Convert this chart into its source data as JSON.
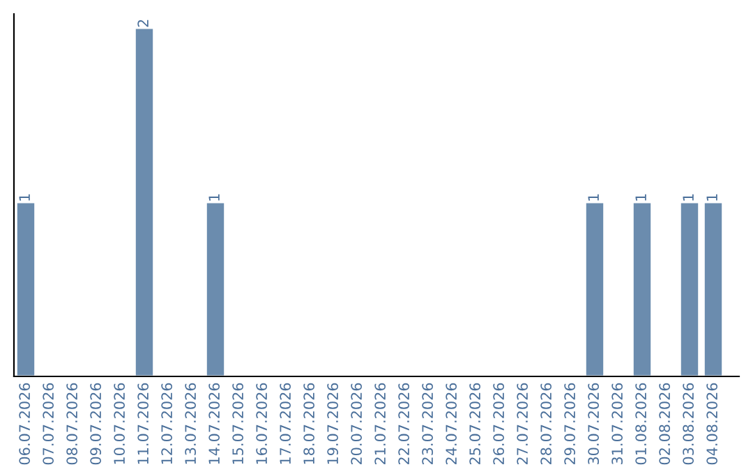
{
  "chart_data": {
    "type": "bar",
    "categories": [
      "06.07.2026",
      "07.07.2026",
      "08.07.2026",
      "09.07.2026",
      "10.07.2026",
      "11.07.2026",
      "12.07.2026",
      "13.07.2026",
      "14.07.2026",
      "15.07.2026",
      "16.07.2026",
      "17.07.2026",
      "18.07.2026",
      "19.07.2026",
      "20.07.2026",
      "21.07.2026",
      "22.07.2026",
      "23.07.2026",
      "24.07.2026",
      "25.07.2026",
      "26.07.2026",
      "27.07.2026",
      "28.07.2026",
      "29.07.2026",
      "30.07.2026",
      "31.07.2026",
      "01.08.2026",
      "02.08.2026",
      "03.08.2026",
      "04.08.2026"
    ],
    "values": [
      1,
      null,
      null,
      null,
      null,
      2,
      null,
      null,
      1,
      null,
      null,
      null,
      null,
      null,
      null,
      null,
      null,
      null,
      null,
      null,
      null,
      null,
      null,
      null,
      1,
      null,
      1,
      null,
      1,
      1
    ],
    "value_labels": [
      "1",
      null,
      null,
      null,
      null,
      "2",
      null,
      null,
      "1",
      null,
      null,
      null,
      null,
      null,
      null,
      null,
      null,
      null,
      null,
      null,
      null,
      null,
      null,
      null,
      "1",
      null,
      "1",
      null,
      "1",
      "1"
    ],
    "color": "#6b8cae",
    "ylim": [
      0,
      2.08
    ],
    "tick_labels": "x",
    "grid": false,
    "legend": false
  }
}
